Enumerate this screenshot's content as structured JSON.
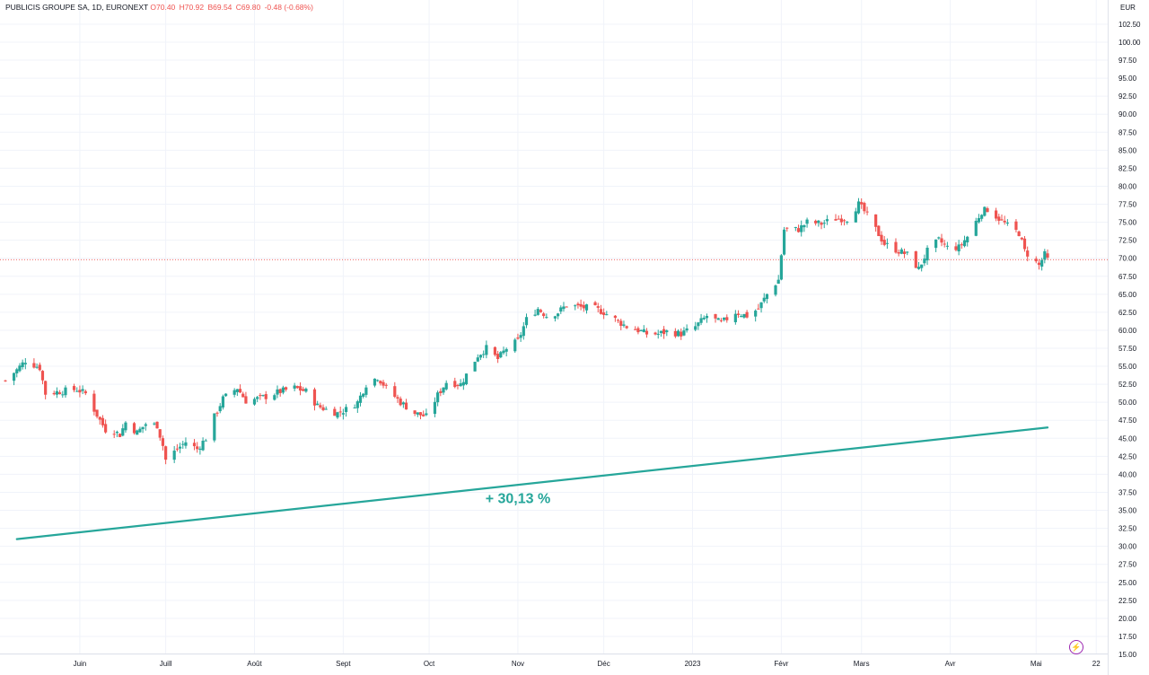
{
  "header": {
    "symbol": "PUBLICIS GROUPE SA, 1D, EURONEXT",
    "open": "O70.40",
    "high": "H70.92",
    "low": "B69.54",
    "close": "C69.80",
    "change": "-0.48 (-0.68%)"
  },
  "colors": {
    "up": "#26a69a",
    "down": "#ef5350",
    "trend": "#26a69a",
    "grid": "#f0f3fa",
    "axis_text": "#131722",
    "last_price_line": "#ef5350"
  },
  "chart_data": {
    "type": "candlestick",
    "currency": "EUR",
    "y_ticks": [
      "102.50",
      "100.00",
      "97.50",
      "95.00",
      "92.50",
      "90.00",
      "87.50",
      "85.00",
      "82.50",
      "80.00",
      "77.50",
      "75.00",
      "72.50",
      "70.00",
      "67.50",
      "65.00",
      "62.50",
      "60.00",
      "57.50",
      "55.00",
      "52.50",
      "50.00",
      "47.50",
      "45.00",
      "42.50",
      "40.00",
      "37.50",
      "35.00",
      "32.50",
      "30.00",
      "27.50",
      "25.00",
      "22.50",
      "20.00",
      "17.50",
      "15.00"
    ],
    "ylim": [
      15,
      105
    ],
    "x_ticks": [
      {
        "label": "Juin",
        "date": "2022-06-01"
      },
      {
        "label": "Juill",
        "date": "2022-07-01"
      },
      {
        "label": "Août",
        "date": "2022-08-01"
      },
      {
        "label": "Sept",
        "date": "2022-09-01"
      },
      {
        "label": "Oct",
        "date": "2022-10-01"
      },
      {
        "label": "Nov",
        "date": "2022-11-01"
      },
      {
        "label": "Déc",
        "date": "2022-12-01"
      },
      {
        "label": "2023",
        "date": "2023-01-01"
      },
      {
        "label": "Févr",
        "date": "2023-02-01"
      },
      {
        "label": "Mars",
        "date": "2023-03-01"
      },
      {
        "label": "Avr",
        "date": "2023-04-01"
      },
      {
        "label": "Mai",
        "date": "2023-05-01"
      },
      {
        "label": "22",
        "date": "2023-05-22"
      }
    ],
    "xlim": [
      "2022-05-06",
      "2023-05-26"
    ],
    "close_path": [
      [
        "2022-05-06",
        53.0
      ],
      [
        "2022-05-10",
        54.5
      ],
      [
        "2022-05-13",
        55.8
      ],
      [
        "2022-05-18",
        54.8
      ],
      [
        "2022-05-20",
        51.2
      ],
      [
        "2022-05-25",
        51.5
      ],
      [
        "2022-05-31",
        51.8
      ],
      [
        "2022-06-03",
        51.2
      ],
      [
        "2022-06-08",
        47.5
      ],
      [
        "2022-06-10",
        46.2
      ],
      [
        "2022-06-13",
        46.0
      ],
      [
        "2022-06-15",
        45.5
      ],
      [
        "2022-06-17",
        47.2
      ],
      [
        "2022-06-21",
        45.8
      ],
      [
        "2022-06-24",
        47.0
      ],
      [
        "2022-06-28",
        46.8
      ],
      [
        "2022-06-30",
        44.0
      ],
      [
        "2022-07-01",
        42.0
      ],
      [
        "2022-07-05",
        43.5
      ],
      [
        "2022-07-08",
        44.5
      ],
      [
        "2022-07-12",
        43.5
      ],
      [
        "2022-07-15",
        45.0
      ],
      [
        "2022-07-18",
        48.0
      ],
      [
        "2022-07-21",
        50.5
      ],
      [
        "2022-07-26",
        52.0
      ],
      [
        "2022-07-29",
        50.2
      ],
      [
        "2022-08-02",
        50.5
      ],
      [
        "2022-08-05",
        50.8
      ],
      [
        "2022-08-10",
        51.5
      ],
      [
        "2022-08-15",
        52.0
      ],
      [
        "2022-08-19",
        51.5
      ],
      [
        "2022-08-23",
        49.5
      ],
      [
        "2022-08-26",
        49.0
      ],
      [
        "2022-08-30",
        48.5
      ],
      [
        "2022-09-02",
        49.0
      ],
      [
        "2022-09-06",
        50.0
      ],
      [
        "2022-09-09",
        52.5
      ],
      [
        "2022-09-13",
        53.5
      ],
      [
        "2022-09-16",
        52.0
      ],
      [
        "2022-09-21",
        50.0
      ],
      [
        "2022-09-26",
        48.5
      ],
      [
        "2022-09-30",
        48.0
      ],
      [
        "2022-10-04",
        51.0
      ],
      [
        "2022-10-07",
        52.8
      ],
      [
        "2022-10-12",
        52.5
      ],
      [
        "2022-10-18",
        56.5
      ],
      [
        "2022-10-21",
        57.5
      ],
      [
        "2022-10-25",
        56.0
      ],
      [
        "2022-10-28",
        57.5
      ],
      [
        "2022-11-01",
        58.5
      ],
      [
        "2022-11-04",
        61.5
      ],
      [
        "2022-11-08",
        63.0
      ],
      [
        "2022-11-11",
        62.0
      ],
      [
        "2022-11-15",
        62.5
      ],
      [
        "2022-11-18",
        63.5
      ],
      [
        "2022-11-23",
        63.2
      ],
      [
        "2022-11-28",
        63.0
      ],
      [
        "2022-12-01",
        62.5
      ],
      [
        "2022-12-05",
        61.5
      ],
      [
        "2022-12-09",
        60.5
      ],
      [
        "2022-12-13",
        60.0
      ],
      [
        "2022-12-16",
        59.5
      ],
      [
        "2022-12-20",
        59.5
      ],
      [
        "2022-12-23",
        59.8
      ],
      [
        "2022-12-28",
        59.5
      ],
      [
        "2023-01-02",
        60.5
      ],
      [
        "2023-01-06",
        62.0
      ],
      [
        "2023-01-11",
        61.0
      ],
      [
        "2023-01-16",
        62.5
      ],
      [
        "2023-01-20",
        62.0
      ],
      [
        "2023-01-24",
        63.0
      ],
      [
        "2023-01-27",
        65.0
      ],
      [
        "2023-01-31",
        67.0
      ],
      [
        "2023-02-02",
        74.0
      ],
      [
        "2023-02-07",
        74.0
      ],
      [
        "2023-02-10",
        75.0
      ],
      [
        "2023-02-15",
        74.8
      ],
      [
        "2023-02-20",
        75.5
      ],
      [
        "2023-02-24",
        75.5
      ],
      [
        "2023-02-28",
        77.5
      ],
      [
        "2023-03-02",
        76.5
      ],
      [
        "2023-03-06",
        74.0
      ],
      [
        "2023-03-09",
        72.0
      ],
      [
        "2023-03-14",
        71.0
      ],
      [
        "2023-03-17",
        70.5
      ],
      [
        "2023-03-21",
        68.5
      ],
      [
        "2023-03-24",
        71.0
      ],
      [
        "2023-03-28",
        72.5
      ],
      [
        "2023-03-31",
        71.5
      ],
      [
        "2023-04-04",
        71.5
      ],
      [
        "2023-04-07",
        73.0
      ],
      [
        "2023-04-12",
        76.5
      ],
      [
        "2023-04-14",
        76.8
      ],
      [
        "2023-04-18",
        75.5
      ],
      [
        "2023-04-21",
        74.5
      ],
      [
        "2023-04-25",
        73.5
      ],
      [
        "2023-04-27",
        71.0
      ],
      [
        "2023-05-02",
        69.0
      ],
      [
        "2023-05-04",
        70.5
      ],
      [
        "2023-05-05",
        69.8
      ]
    ],
    "last_price": 69.8,
    "trend_line": {
      "from": [
        "2022-05-10",
        31.0
      ],
      "to": [
        "2023-05-05",
        46.5
      ]
    },
    "annotation": "+ 30,13 %",
    "annotation_anchor": [
      "2022-11-01",
      36.0
    ]
  }
}
